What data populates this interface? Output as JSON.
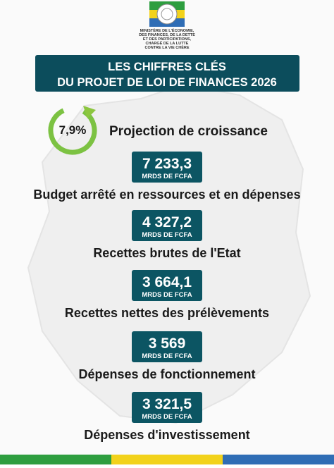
{
  "header": {
    "ministry": [
      "MINISTÈRE DE L'ÉCONOMIE,",
      "DES FINANCES, DE LA DETTE",
      "ET DES PARTICIPATIONS,",
      "CHARGÉ DE LA LUTTE",
      "CONTRE LA VIE CHÈRE"
    ]
  },
  "banner": {
    "lines": [
      "LES CHIFFRES CLÉS",
      "DU PROJET DE LOI DE FINANCES 2026"
    ]
  },
  "growth": {
    "value": "7,9%",
    "label": "Projection de croissance"
  },
  "figures": [
    {
      "amount": "7 233,3",
      "unit": "MRDS DE FCFA",
      "label": "Budget arrêté en ressources et en dépenses"
    },
    {
      "amount": "4 327,2",
      "unit": "MRDS DE FCFA",
      "label": "Recettes brutes de l'Etat"
    },
    {
      "amount": "3 664,1",
      "unit": "MRDS DE FCFA",
      "label": "Recettes nettes des prélèvements"
    },
    {
      "amount": "3 569",
      "unit": "MRDS DE FCFA",
      "label": "Dépenses de fonctionnement"
    },
    {
      "amount": "3 321,5",
      "unit": "MRDS DE FCFA",
      "label": "Dépenses d'investissement"
    }
  ]
}
